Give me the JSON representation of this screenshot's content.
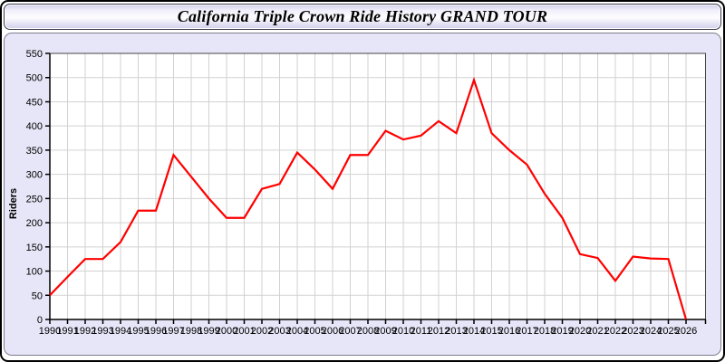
{
  "window": {
    "title": "California Triple Crown Ride History GRAND TOUR"
  },
  "chart_data": {
    "type": "line",
    "title": "California Triple Crown Ride History GRAND TOUR",
    "xlabel": "",
    "ylabel": "Riders",
    "ylim": [
      0,
      550
    ],
    "ytick_step": 50,
    "grid": true,
    "legend_position": "none",
    "x": [
      1990,
      1991,
      1992,
      1993,
      1994,
      1995,
      1996,
      1997,
      1998,
      1999,
      2000,
      2001,
      2002,
      2003,
      2004,
      2005,
      2006,
      2007,
      2008,
      2009,
      2010,
      2011,
      2012,
      2013,
      2014,
      2015,
      2016,
      2017,
      2018,
      2019,
      2020,
      2021,
      2022,
      2023,
      2024,
      2025,
      2026
    ],
    "series": [
      {
        "name": "Riders",
        "values": [
          50,
          88,
          125,
          125,
          160,
          225,
          225,
          340,
          295,
          250,
          210,
          210,
          270,
          280,
          345,
          310,
          270,
          340,
          340,
          390,
          372,
          380,
          410,
          385,
          495,
          385,
          350,
          320,
          260,
          210,
          135,
          127,
          80,
          130,
          126,
          125,
          0
        ]
      }
    ],
    "colors": {
      "line": "#ff0000",
      "panel_bg": "#e7e6f8",
      "plot_bg": "#ffffff",
      "grid": "#d2d2d2",
      "axis": "#000000",
      "plot_border": "#444444",
      "tick_text": "#000000"
    }
  }
}
